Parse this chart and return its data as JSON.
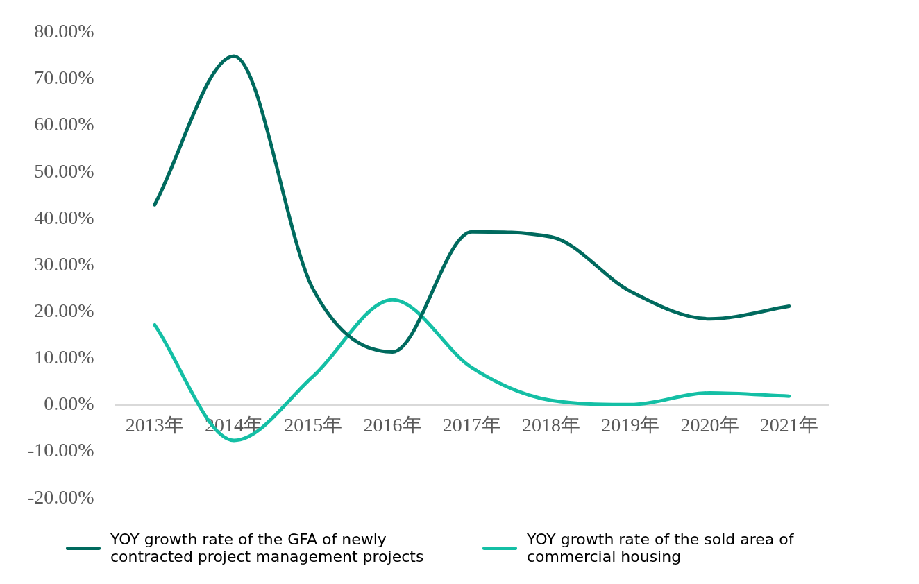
{
  "chart_data": {
    "type": "line",
    "categories": [
      "2013年",
      "2014年",
      "2015年",
      "2016年",
      "2017年",
      "2018年",
      "2019年",
      "2020年",
      "2021年"
    ],
    "series": [
      {
        "name": "YOY growth rate of the GFA of newly contracted project management projects",
        "color": "#006a5e",
        "values": [
          43.0,
          74.9,
          24.8,
          11.4,
          37.2,
          36.1,
          24.4,
          18.5,
          21.2
        ]
      },
      {
        "name": "YOY growth rate of the sold area of commercial housing",
        "color": "#14bfa5",
        "values": [
          17.2,
          -7.6,
          6.2,
          22.6,
          8.0,
          1.0,
          0.1,
          2.6,
          1.9
        ]
      }
    ],
    "ylim": [
      -20,
      80
    ],
    "yticks": [
      {
        "value": -20,
        "label": "-20.00%"
      },
      {
        "value": -10,
        "label": "-10.00%"
      },
      {
        "value": 0,
        "label": "0.00%"
      },
      {
        "value": 10,
        "label": "10.00%"
      },
      {
        "value": 20,
        "label": "20.00%"
      },
      {
        "value": 30,
        "label": "30.00%"
      },
      {
        "value": 40,
        "label": "40.00%"
      },
      {
        "value": 50,
        "label": "50.00%"
      },
      {
        "value": 60,
        "label": "60.00%"
      },
      {
        "value": 70,
        "label": "70.00%"
      },
      {
        "value": 80,
        "label": "80.00%"
      }
    ],
    "grid": false,
    "legend": "bottom",
    "marker": "none",
    "line_style": "solid"
  }
}
